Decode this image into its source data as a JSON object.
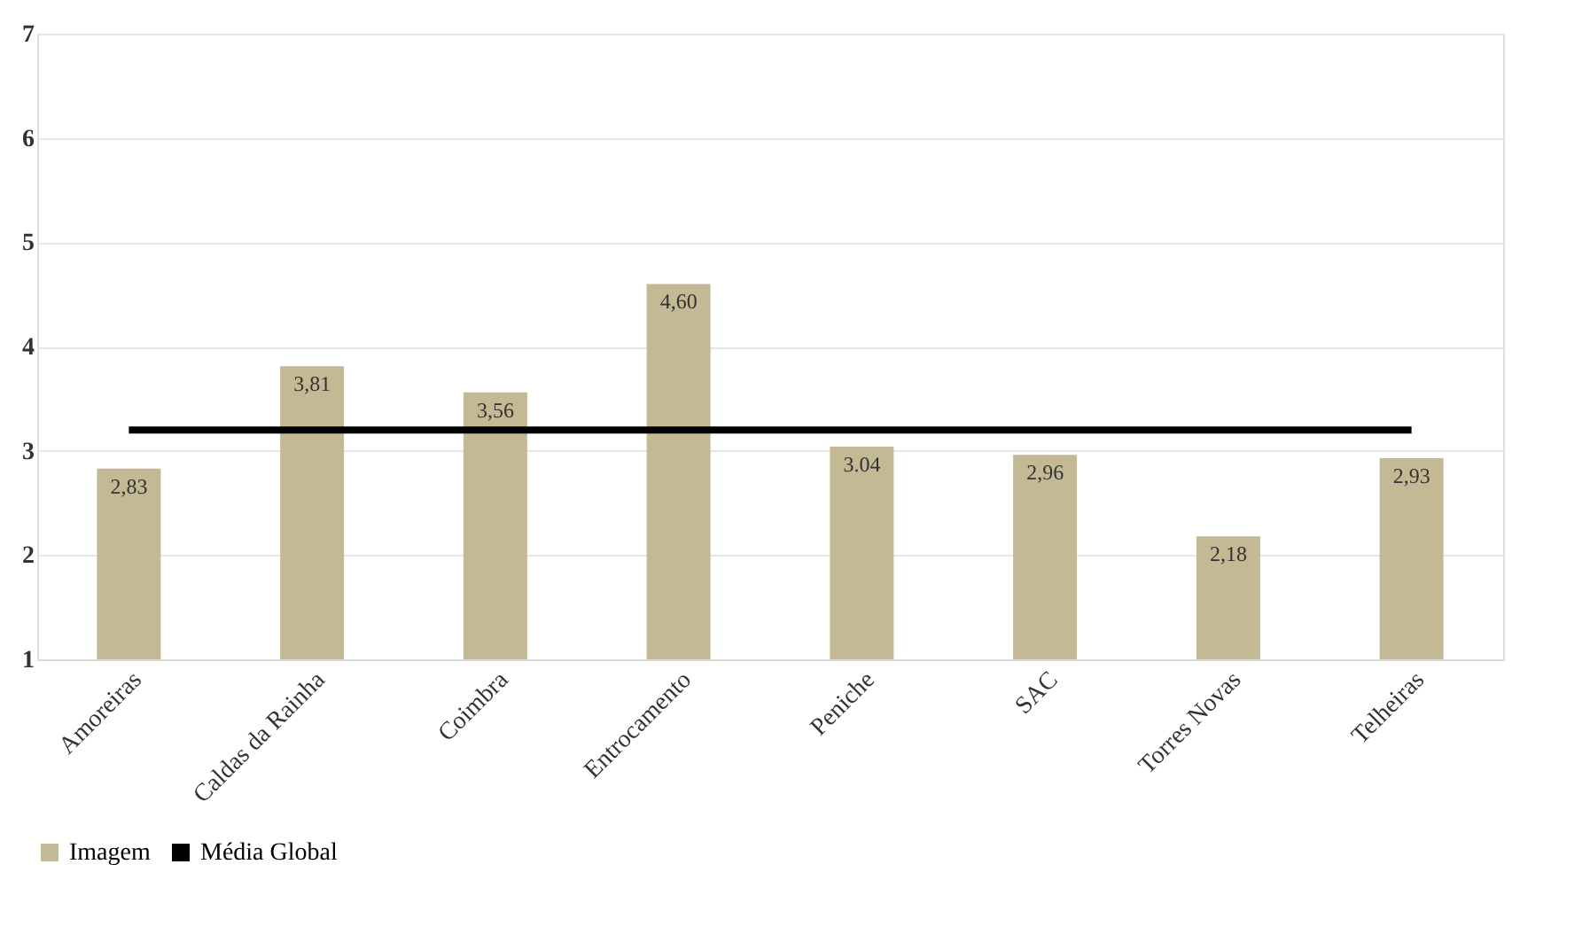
{
  "chart_data": {
    "type": "bar",
    "categories": [
      "Amoreiras",
      "Caldas da Rainha",
      "Coimbra",
      "Entrocamento",
      "Peniche",
      "SAC",
      "Torres Novas",
      "Telheiras"
    ],
    "series": [
      {
        "name": "Imagem",
        "color": "#c4b995",
        "values": [
          2.83,
          3.81,
          3.56,
          4.6,
          3.04,
          2.96,
          2.18,
          2.93
        ],
        "value_labels": [
          "2,83",
          "3,81",
          "3,56",
          "4,60",
          "3.04",
          "2,96",
          "2,18",
          "2,93"
        ]
      },
      {
        "name": "Média Global",
        "type": "line",
        "color": "#000000",
        "values": [
          3.2,
          3.2,
          3.2,
          3.2,
          3.2,
          3.2,
          3.2,
          3.2
        ]
      }
    ],
    "ylim": [
      1,
      7
    ],
    "yticks": [
      1,
      2,
      3,
      4,
      5,
      6,
      7
    ],
    "grid": "y",
    "legend": "bottom"
  }
}
